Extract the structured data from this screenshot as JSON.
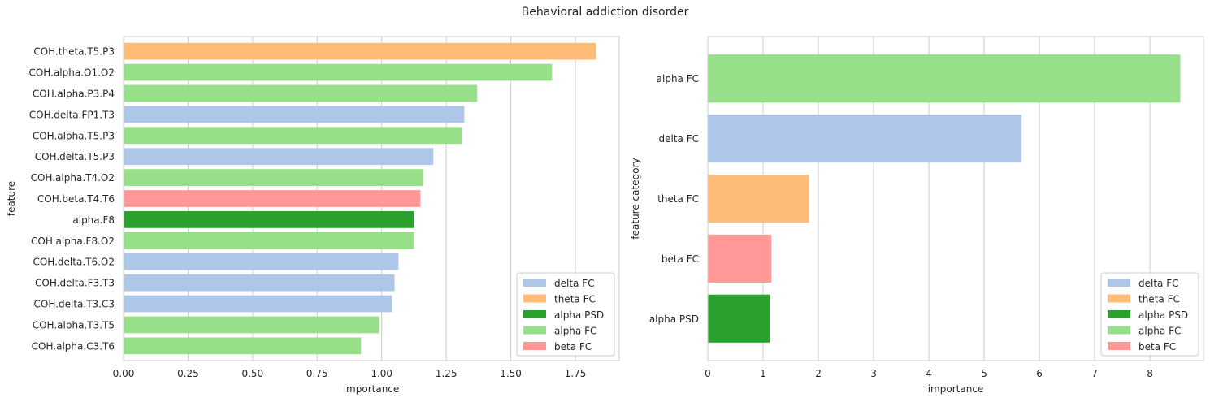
{
  "figure_title": "Behavioral addiction disorder",
  "colors": {
    "delta FC": "#aec7e8",
    "theta FC": "#ffbb78",
    "alpha PSD": "#2ca02c",
    "alpha FC": "#98df8a",
    "beta FC": "#ff9896",
    "grid": "#cccccc",
    "spine": "#cccccc",
    "text": "#262626"
  },
  "chart_data": [
    {
      "type": "bar",
      "orientation": "horizontal",
      "xlabel": "importance",
      "ylabel": "feature",
      "xlim": [
        0,
        1.92
      ],
      "xticks": [
        "0.00",
        "0.25",
        "0.50",
        "0.75",
        "1.00",
        "1.25",
        "1.50",
        "1.75"
      ],
      "xtick_values": [
        0,
        0.25,
        0.5,
        0.75,
        1.0,
        1.25,
        1.5,
        1.75
      ],
      "grid": "vertical",
      "legend_position": "lower-right",
      "legend": [
        "delta FC",
        "theta FC",
        "alpha PSD",
        "alpha FC",
        "beta FC"
      ],
      "bars": [
        {
          "label": "COH.theta.T5.P3",
          "value": 1.83,
          "category": "theta FC"
        },
        {
          "label": "COH.alpha.O1.O2",
          "value": 1.66,
          "category": "alpha FC"
        },
        {
          "label": "COH.alpha.P3.P4",
          "value": 1.37,
          "category": "alpha FC"
        },
        {
          "label": "COH.delta.FP1.T3",
          "value": 1.32,
          "category": "delta FC"
        },
        {
          "label": "COH.alpha.T5.P3",
          "value": 1.31,
          "category": "alpha FC"
        },
        {
          "label": "COH.delta.T5.P3",
          "value": 1.2,
          "category": "delta FC"
        },
        {
          "label": "COH.alpha.T4.O2",
          "value": 1.16,
          "category": "alpha FC"
        },
        {
          "label": "COH.beta.T4.T6",
          "value": 1.15,
          "category": "beta FC"
        },
        {
          "label": "alpha.F8",
          "value": 1.125,
          "category": "alpha PSD"
        },
        {
          "label": "COH.alpha.F8.O2",
          "value": 1.125,
          "category": "alpha FC"
        },
        {
          "label": "COH.delta.T6.O2",
          "value": 1.065,
          "category": "delta FC"
        },
        {
          "label": "COH.delta.F3.T3",
          "value": 1.05,
          "category": "delta FC"
        },
        {
          "label": "COH.delta.T3.C3",
          "value": 1.04,
          "category": "delta FC"
        },
        {
          "label": "COH.alpha.T3.T5",
          "value": 0.99,
          "category": "alpha FC"
        },
        {
          "label": "COH.alpha.C3.T6",
          "value": 0.92,
          "category": "alpha FC"
        }
      ]
    },
    {
      "type": "bar",
      "orientation": "horizontal",
      "xlabel": "importance",
      "ylabel": "feature category",
      "xlim": [
        0,
        8.97
      ],
      "xticks": [
        "0",
        "1",
        "2",
        "3",
        "4",
        "5",
        "6",
        "7",
        "8"
      ],
      "xtick_values": [
        0,
        1,
        2,
        3,
        4,
        5,
        6,
        7,
        8
      ],
      "grid": "vertical",
      "legend_position": "lower-right",
      "legend": [
        "delta FC",
        "theta FC",
        "alpha PSD",
        "alpha FC",
        "beta FC"
      ],
      "bars": [
        {
          "label": "alpha FC",
          "value": 8.55,
          "category": "alpha FC"
        },
        {
          "label": "delta FC",
          "value": 5.68,
          "category": "delta FC"
        },
        {
          "label": "theta FC",
          "value": 1.83,
          "category": "theta FC"
        },
        {
          "label": "beta FC",
          "value": 1.15,
          "category": "beta FC"
        },
        {
          "label": "alpha PSD",
          "value": 1.12,
          "category": "alpha PSD"
        }
      ]
    }
  ]
}
